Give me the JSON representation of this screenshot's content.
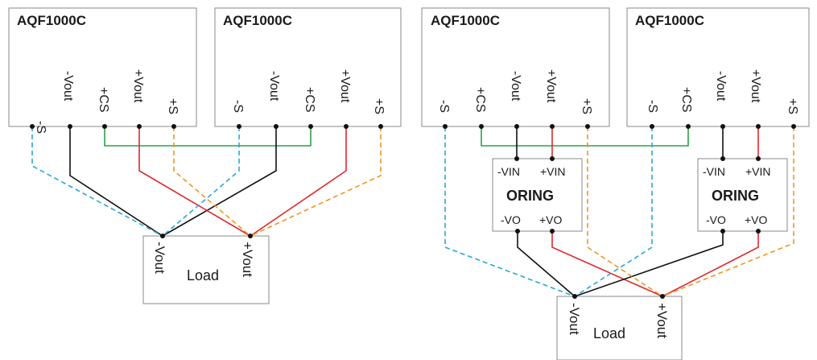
{
  "left": {
    "module1": {
      "title": "AQF1000C",
      "pins": [
        "-S",
        "-Vout",
        "+CS",
        "+Vout",
        "+S"
      ]
    },
    "module2": {
      "title": "AQF1000C",
      "pins": [
        "-S",
        "-Vout",
        "+CS",
        "+Vout",
        "+S"
      ]
    },
    "load": {
      "label": "Load",
      "neg": "-Vout",
      "pos": "+Vout"
    }
  },
  "right": {
    "module1": {
      "title": "AQF1000C",
      "pins": [
        "-S",
        "+CS",
        "-Vout",
        "+Vout",
        "+S"
      ]
    },
    "module2": {
      "title": "AQF1000C",
      "pins": [
        "-S",
        "+CS",
        "-Vout",
        "+Vout",
        "+S"
      ]
    },
    "oring1": {
      "label": "ORING",
      "vin_neg": "-VIN",
      "vin_pos": "+VIN",
      "vo_neg": "-VO",
      "vo_pos": "+VO"
    },
    "oring2": {
      "label": "ORING",
      "vin_neg": "-VIN",
      "vin_pos": "+VIN",
      "vo_neg": "-VO",
      "vo_pos": "+VO"
    },
    "load": {
      "label": "Load",
      "neg": "-Vout",
      "pos": "+Vout"
    }
  },
  "colors": {
    "negative": "#111111",
    "positive": "#e0282e",
    "current_share": "#2aa24a",
    "sense_negative": "#2aa6d8",
    "sense_positive": "#f0961e"
  }
}
